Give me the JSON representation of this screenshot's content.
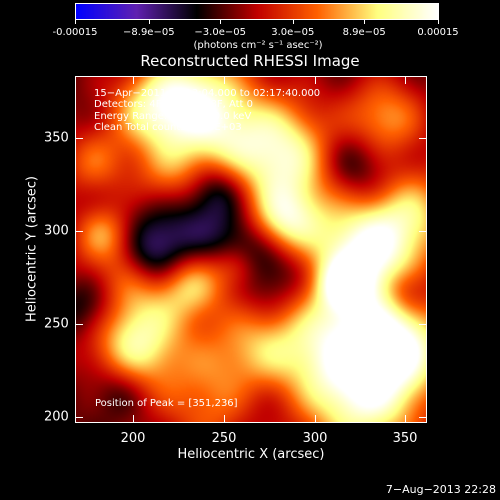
{
  "chart_data": {
    "type": "heatmap",
    "title": "Reconstructed RHESSI Image",
    "xlabel": "Heliocentric X (arcsec)",
    "ylabel": "Heliocentric Y (arcsec)",
    "xlim": [
      168,
      362
    ],
    "ylim": [
      197,
      383
    ],
    "xticks": [
      "200",
      "250",
      "300",
      "350"
    ],
    "xtick_values": [
      200,
      250,
      300,
      350
    ],
    "yticks": [
      "200",
      "250",
      "300",
      "350"
    ],
    "ytick_values": [
      200,
      250,
      300,
      350
    ],
    "colorbar": {
      "labels": [
        "-0.00015",
        "−8.9e−05",
        "−3.0e−05",
        "3.0e−05",
        "8.9e−05",
        "0.00015"
      ],
      "values": [
        -0.00015,
        -8.9e-05,
        -3e-05,
        3e-05,
        8.9e-05,
        0.00015
      ],
      "units": "(photons cm⁻² s⁻¹ asec⁻²)",
      "range": [
        -0.00015,
        0.00015
      ],
      "colors": [
        "#0000ff",
        "#6020b0",
        "#000000",
        "#c00000",
        "#ff6000",
        "#ffff80",
        "#ffffff"
      ]
    },
    "annotations": [
      "15−Apr−2011 02:13:04.000 to 02:17:40.000",
      "Detectors: 4F 5F 6F 7F 8F, Att 0",
      "Energy Range: 25.0 − 50.0 keV",
      "Clean     Total counts: 9.28E+03"
    ],
    "peak_text": "Position of Peak = [351,236]",
    "peak_position": [
      351,
      236
    ]
  },
  "footer": {
    "date": "7−Aug−2013 22:28"
  }
}
